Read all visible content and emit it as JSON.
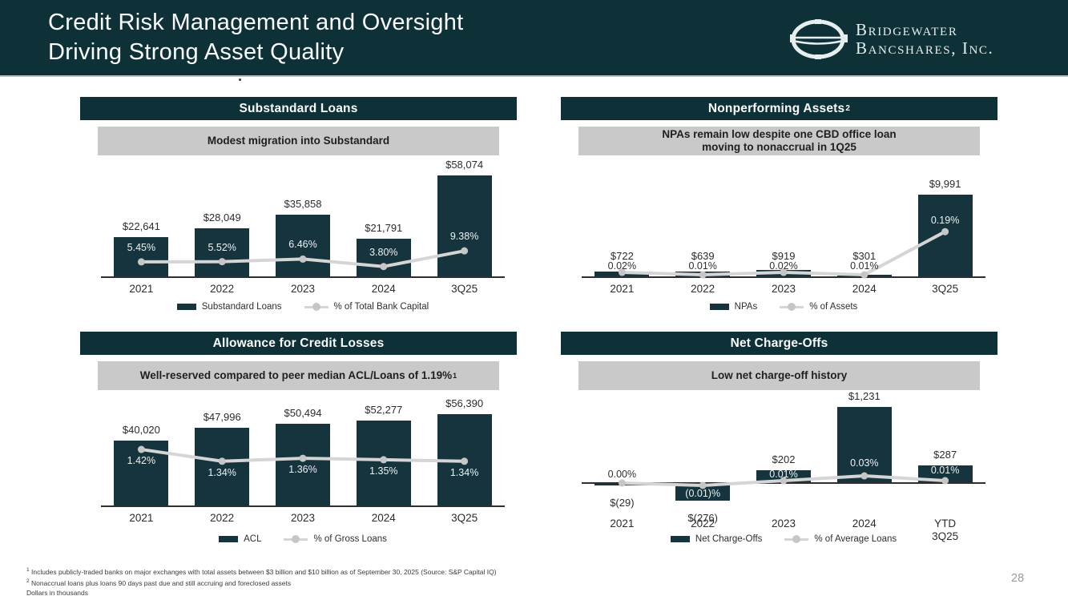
{
  "page": {
    "number": "28"
  },
  "header": {
    "title_line1": "Credit Risk Management and Oversight",
    "title_line2": "Driving Strong Asset Quality",
    "logo_line1": "Bridgewater",
    "logo_line2": "Bancshares, Inc.",
    "logo_icon": "bridge-ellipse-mark"
  },
  "colors": {
    "teal_header": "#0e3138",
    "bar_fill": "#16343e",
    "subtitle_bg": "#c9c9c9",
    "trend_line": "#d5d5d5",
    "trend_marker": "#c6c6c6"
  },
  "chart_data": [
    {
      "type": "bar+line",
      "title": "Substandard Loans",
      "title_sup": "",
      "subtitle": "Modest migration into Substandard",
      "subtitle_sup": "",
      "categories": [
        "2021",
        "2022",
        "2023",
        "2024",
        "3Q25"
      ],
      "bar_series": {
        "name": "Substandard Loans",
        "values": [
          22641,
          28049,
          35858,
          21791,
          58074
        ],
        "labels": [
          "$22,641",
          "$28,049",
          "$35,858",
          "$21,791",
          "$58,074"
        ]
      },
      "line_series": {
        "name": "% of Total Bank Capital",
        "values": [
          5.45,
          5.52,
          6.46,
          3.8,
          9.38
        ],
        "labels": [
          "5.45%",
          "5.52%",
          "6.46%",
          "3.80%",
          "9.38%"
        ]
      },
      "ylim": [
        0,
        60000
      ],
      "y2lim": [
        0,
        10
      ],
      "legend_position": "bottom",
      "grid": false,
      "units": "Dollars in thousands"
    },
    {
      "type": "bar+line",
      "title": "Nonperforming Assets",
      "title_sup": "2",
      "subtitle": "NPAs remain low despite one CBD office loan\nmoving to nonaccrual in 1Q25",
      "subtitle_sup": "",
      "categories": [
        "2021",
        "2022",
        "2023",
        "2024",
        "3Q25"
      ],
      "bar_series": {
        "name": "NPAs",
        "values": [
          722,
          639,
          919,
          301,
          9991
        ],
        "labels": [
          "$722",
          "$639",
          "$919",
          "$301",
          "$9,991"
        ]
      },
      "line_series": {
        "name": "% of Assets",
        "values": [
          0.02,
          0.01,
          0.02,
          0.01,
          0.19
        ],
        "labels": [
          "0.02%",
          "0.01%",
          "0.02%",
          "0.01%",
          "0.19%"
        ]
      },
      "ylim": [
        0,
        10000
      ],
      "y2lim": [
        0,
        0.2
      ],
      "legend_position": "bottom",
      "grid": false,
      "units": "Dollars in thousands"
    },
    {
      "type": "bar+line",
      "title": "Allowance for Credit Losses",
      "title_sup": "",
      "subtitle": "Well-reserved compared to peer median ACL/Loans of 1.19%",
      "subtitle_sup": "1",
      "categories": [
        "2021",
        "2022",
        "2023",
        "2024",
        "3Q25"
      ],
      "bar_series": {
        "name": "ACL",
        "values": [
          40020,
          47996,
          50494,
          52277,
          56390
        ],
        "labels": [
          "$40,020",
          "$47,996",
          "$50,494",
          "$52,277",
          "$56,390"
        ]
      },
      "line_series": {
        "name": "% of Gross Loans",
        "values": [
          1.42,
          1.34,
          1.36,
          1.35,
          1.34
        ],
        "labels": [
          "1.42%",
          "1.34%",
          "1.36%",
          "1.35%",
          "1.34%"
        ]
      },
      "ylim": [
        0,
        60000
      ],
      "y2lim": [
        1.0,
        1.5
      ],
      "legend_position": "bottom",
      "grid": false,
      "units": "Dollars in thousands"
    },
    {
      "type": "bar+line",
      "title": "Net Charge-Offs",
      "title_sup": "",
      "subtitle": "Low net charge-off history",
      "subtitle_sup": "",
      "categories": [
        "2021",
        "2022",
        "2023",
        "2024",
        "YTD\n3Q25"
      ],
      "bar_series": {
        "name": "Net Charge-Offs",
        "values": [
          -29,
          -276,
          202,
          1231,
          287
        ],
        "labels": [
          "$(29)",
          "$(276)",
          "$202",
          "$1,231",
          "$287"
        ]
      },
      "line_series": {
        "name": "% of Average Loans",
        "values": [
          0.0,
          -0.01,
          0.01,
          0.03,
          0.01
        ],
        "labels": [
          "0.00%",
          "(0.01)%",
          "0.01%",
          "0.03%",
          "0.01%"
        ]
      },
      "ylim": [
        -300,
        1300
      ],
      "y2lim": [
        -0.01,
        0.03
      ],
      "legend_position": "bottom",
      "grid": false,
      "units": "Dollars in thousands"
    }
  ],
  "footnotes": [
    {
      "sup": "1",
      "text": "Includes publicly-traded banks on major exchanges with total assets between $3 billion and $10 billion as of September 30, 2025 (Source: S&P Capital IQ)"
    },
    {
      "sup": "2",
      "text": "Nonaccrual loans plus loans 90 days past due and still accruing and foreclosed assets"
    },
    {
      "sup": "",
      "text": "Dollars in thousands"
    }
  ]
}
